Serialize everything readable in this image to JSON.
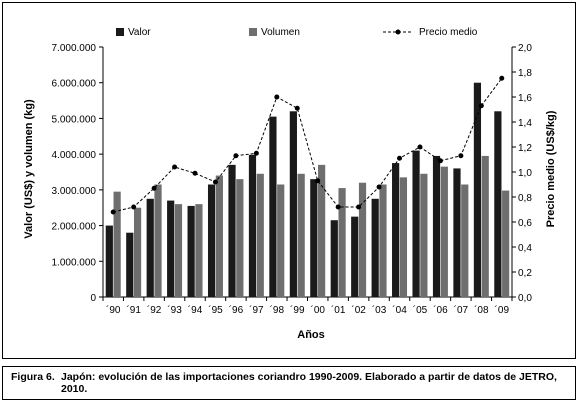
{
  "figure": {
    "label": "Figura 6.",
    "caption": "Japón: evolución de las importaciones coriandro 1990-2009. Elaborado a partir de datos de JETRO, 2010."
  },
  "chart_data": {
    "type": "bar",
    "xlabel": "Años",
    "ylabel_left": "Valor (US$) y volumen (kg)",
    "ylabel_right": "Precio medio (US$/kg)",
    "categories": [
      "´90",
      "´91",
      "´92",
      "´93",
      "´94",
      "´95",
      "´96",
      "´97",
      "´98",
      "´99",
      "´00",
      "´01",
      "´02",
      "´03",
      "´04",
      "´05",
      "´06",
      "´07",
      "´08",
      "´09"
    ],
    "ylim_left": [
      0,
      7000000
    ],
    "ylim_right": [
      0,
      2.0
    ],
    "yticks_left": [
      "0",
      "1.000.000",
      "2.000.000",
      "3.000.000",
      "4.000.000",
      "5.000.000",
      "6.000.000",
      "7.000.000"
    ],
    "yticks_right": [
      "0,0",
      "0,2",
      "0,4",
      "0,6",
      "0,8",
      "1,0",
      "1,2",
      "1,4",
      "1,6",
      "1,8",
      "2,0"
    ],
    "legend_position": "top",
    "series": [
      {
        "name": "Valor",
        "kind": "bar",
        "axis": "left",
        "color": "#1a1a1a",
        "values": [
          2000000,
          1800000,
          2750000,
          2700000,
          2550000,
          3150000,
          3700000,
          3980000,
          5050000,
          5200000,
          3300000,
          2150000,
          2250000,
          2750000,
          3750000,
          4100000,
          3950000,
          3600000,
          6000000,
          5200000
        ]
      },
      {
        "name": "Volumen",
        "kind": "bar",
        "axis": "left",
        "color": "#6e6e6e",
        "values": [
          2950000,
          2500000,
          3150000,
          2600000,
          2600000,
          3400000,
          3300000,
          3450000,
          3150000,
          3450000,
          3700000,
          3050000,
          3200000,
          3150000,
          3350000,
          3450000,
          3650000,
          3150000,
          3950000,
          2980000
        ]
      },
      {
        "name": "Precio medio",
        "kind": "line",
        "axis": "right",
        "color": "#000000",
        "values": [
          0.68,
          0.72,
          0.87,
          1.04,
          0.99,
          0.92,
          1.13,
          1.15,
          1.6,
          1.51,
          0.93,
          0.72,
          0.72,
          0.88,
          1.11,
          1.2,
          1.09,
          1.13,
          1.53,
          1.75
        ]
      }
    ]
  }
}
